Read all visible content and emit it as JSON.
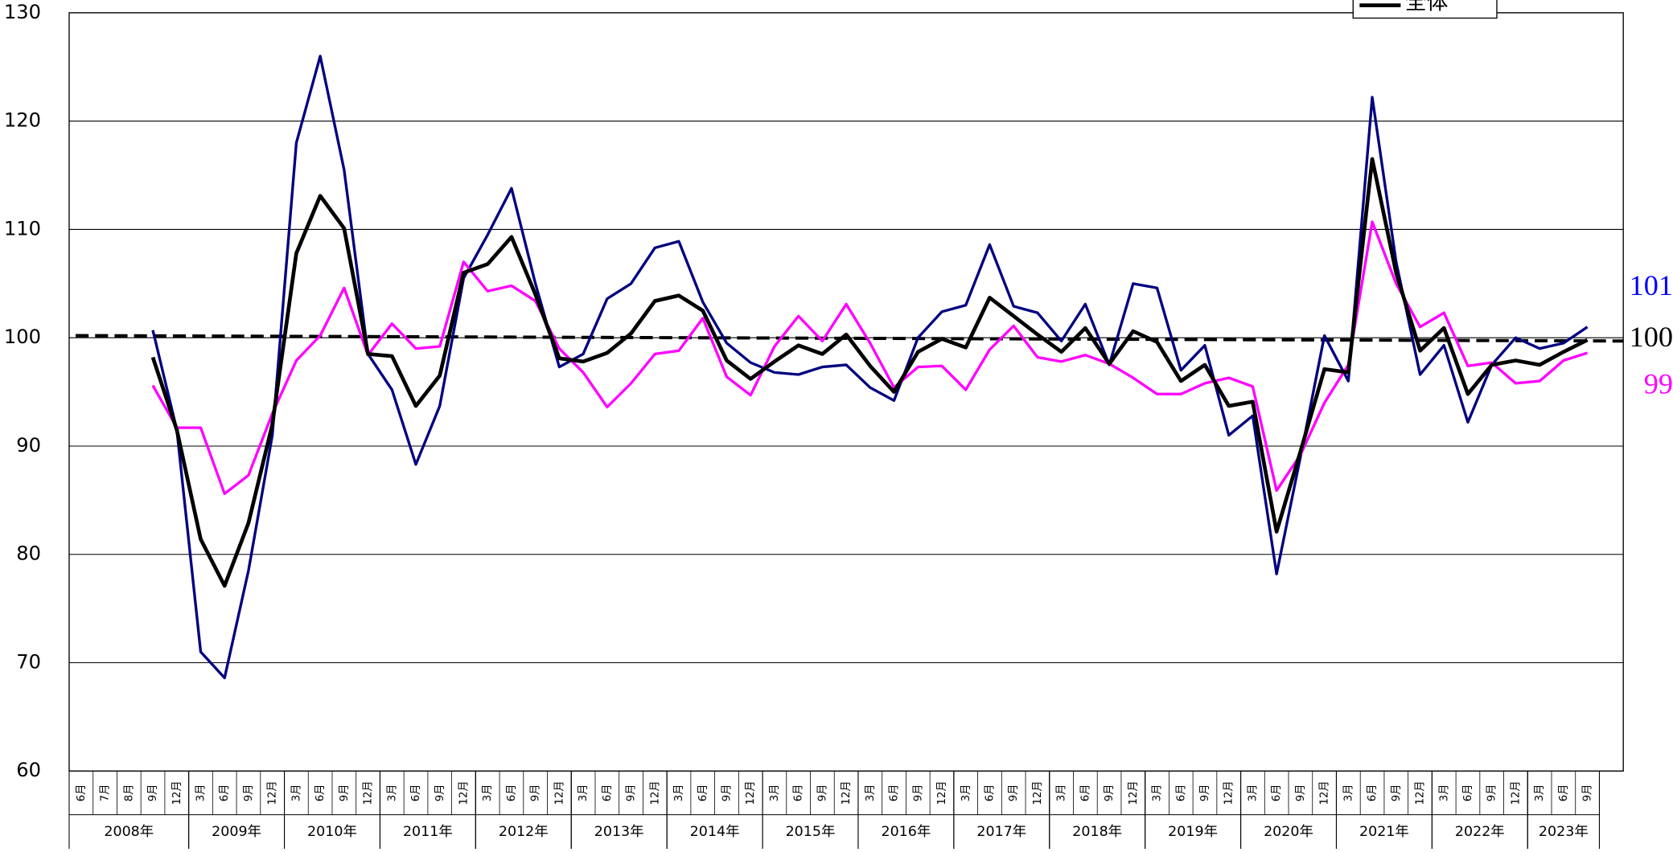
{
  "chart_data": {
    "type": "line",
    "categories": [
      "6月",
      "7月",
      "8月",
      "9月",
      "12月",
      "3月",
      "6月",
      "9月",
      "12月",
      "3月",
      "6月",
      "9月",
      "12月",
      "3月",
      "6月",
      "9月",
      "12月",
      "3月",
      "6月",
      "9月",
      "12月",
      "3月",
      "6月",
      "9月",
      "12月",
      "3月",
      "6月",
      "9月",
      "12月",
      "3月",
      "6月",
      "9月",
      "12月",
      "3月",
      "6月",
      "9月",
      "12月",
      "3月",
      "6月",
      "9月",
      "12月",
      "3月",
      "6月",
      "9月",
      "12月",
      "3月",
      "6月",
      "9月",
      "12月",
      "3月",
      "6月",
      "9月",
      "12月",
      "3月",
      "6月",
      "9月",
      "12月",
      "3月",
      "6月",
      "9月",
      "12月",
      "3月",
      "6月",
      "9月",
      null
    ],
    "x_groups": [
      {
        "label": "2008年",
        "count": 5
      },
      {
        "label": "2009年",
        "count": 4
      },
      {
        "label": "2010年",
        "count": 4
      },
      {
        "label": "2011年",
        "count": 4
      },
      {
        "label": "2012年",
        "count": 4
      },
      {
        "label": "2013年",
        "count": 4
      },
      {
        "label": "2014年",
        "count": 4
      },
      {
        "label": "2015年",
        "count": 4
      },
      {
        "label": "2016年",
        "count": 4
      },
      {
        "label": "2017年",
        "count": 4
      },
      {
        "label": "2018年",
        "count": 4
      },
      {
        "label": "2019年",
        "count": 4
      },
      {
        "label": "2020年",
        "count": 4
      },
      {
        "label": "2021年",
        "count": 4
      },
      {
        "label": "2022年",
        "count": 4
      },
      {
        "label": "2023年",
        "count": 3
      }
    ],
    "series": [
      {
        "color": "#000080",
        "end_label": "101",
        "end_label_color": "#0000ff",
        "values": [
          null,
          null,
          null,
          100.7,
          91.5,
          71.0,
          68.6,
          78.5,
          91,
          118,
          126,
          115.5,
          98.5,
          95.2,
          88.3,
          93.7,
          105.5,
          109.5,
          113.8,
          105,
          97.3,
          98.5,
          103.6,
          105,
          108.3,
          108.9,
          103.3,
          99.5,
          97.7,
          96.8,
          96.6,
          97.3,
          97.5,
          95.4,
          94.2,
          100,
          102.4,
          103,
          108.6,
          102.9,
          102.3,
          99.7,
          103.1,
          97.5,
          105,
          104.6,
          97,
          99.3,
          91,
          92.8,
          78.2,
          89,
          100.2,
          96,
          122.2,
          107,
          96.6,
          99.3,
          92.2,
          97.5,
          100,
          99,
          99.5,
          101.0,
          null
        ]
      },
      {
        "color": "#ff00ff",
        "end_label": "99",
        "end_label_color": "#ff00ff",
        "values": [
          null,
          null,
          null,
          95.6,
          91.7,
          91.7,
          85.6,
          87.3,
          93,
          97.9,
          100.2,
          104.6,
          98.4,
          101.3,
          99,
          99.2,
          107,
          104.3,
          104.8,
          103.4,
          99,
          96.8,
          93.6,
          95.8,
          98.5,
          98.8,
          101.8,
          96.4,
          94.7,
          99.2,
          102,
          99.7,
          103.1,
          99.5,
          95.4,
          97.3,
          97.4,
          95.2,
          98.9,
          101.1,
          98.2,
          97.8,
          98.4,
          97.6,
          96.3,
          94.8,
          94.8,
          95.8,
          96.3,
          95.5,
          85.9,
          89.2,
          94,
          97.5,
          110.7,
          105,
          101,
          102.3,
          97.4,
          97.7,
          95.8,
          96,
          97.9,
          98.6,
          null
        ]
      },
      {
        "name": "全体",
        "color": "#000000",
        "width": 3.5,
        "end_label": "100",
        "end_label_color": "#000000",
        "values": [
          null,
          null,
          null,
          98.2,
          91.5,
          81.4,
          77.1,
          82.9,
          92,
          107.8,
          113.1,
          110.1,
          98.5,
          98.3,
          93.7,
          96.5,
          106,
          106.8,
          109.3,
          104,
          98.1,
          97.8,
          98.6,
          100.4,
          103.4,
          103.9,
          102.5,
          97.9,
          96.2,
          97.8,
          99.3,
          98.5,
          100.3,
          97.4,
          95,
          98.7,
          99.9,
          99.1,
          103.7,
          102,
          100.3,
          98.7,
          100.9,
          97.6,
          100.6,
          99.6,
          96,
          97.5,
          93.7,
          94.1,
          82.1,
          89.5,
          97.1,
          96.8,
          116.5,
          106,
          98.8,
          100.9,
          94.8,
          97.5,
          97.9,
          97.5,
          98.7,
          99.8,
          null
        ]
      }
    ],
    "reference_line": {
      "values": [
        100.2,
        99.7
      ],
      "color": "#000000",
      "dash": true
    },
    "ylim": [
      60,
      130
    ],
    "yticks": [
      60,
      70,
      80,
      90,
      100,
      110,
      120,
      130
    ],
    "grid": true
  }
}
